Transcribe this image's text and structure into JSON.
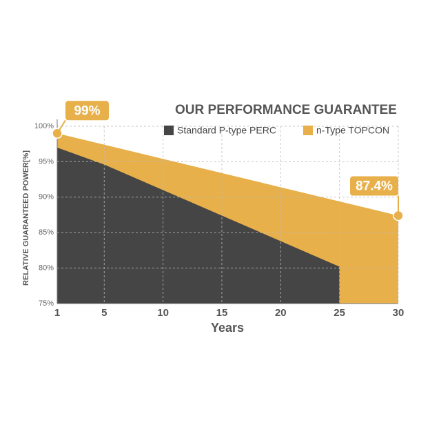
{
  "chart_data": {
    "type": "area",
    "title": "OUR PERFORMANCE GUARANTEE",
    "x_label": "Years",
    "y_label": "RELATIVE GUARANTEED POWER[%]",
    "xlim": [
      1,
      30
    ],
    "xticks": [
      1,
      5,
      10,
      15,
      20,
      25,
      30
    ],
    "ylim": [
      75,
      100
    ],
    "yticks": [
      {
        "value": 75,
        "label": "75%"
      },
      {
        "value": 80,
        "label": "80%"
      },
      {
        "value": 85,
        "label": "85%"
      },
      {
        "value": 90,
        "label": "90%"
      },
      {
        "value": 95,
        "label": "95%"
      },
      {
        "value": 100,
        "label": "100%"
      }
    ],
    "grid": true,
    "series": [
      {
        "name": "n-Type TOPCON",
        "color": "#e8b04a",
        "x": [
          1,
          30
        ],
        "values": [
          99,
          87.4
        ],
        "value_labels": [
          "99%",
          "87.4%"
        ]
      },
      {
        "name": "Standard P-type PERC",
        "color": "#454545",
        "x": [
          1,
          5,
          25
        ],
        "values": [
          97,
          94.6,
          80.2
        ]
      }
    ]
  }
}
